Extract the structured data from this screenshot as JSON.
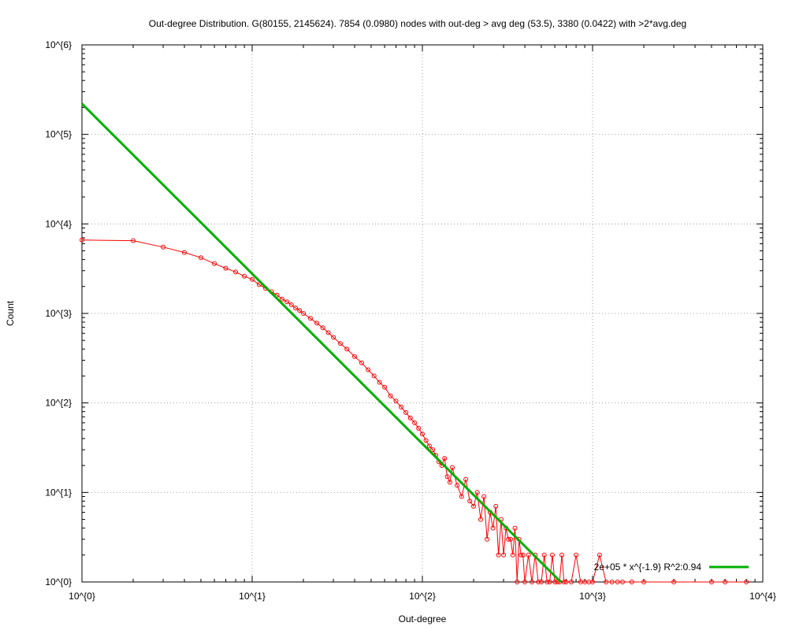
{
  "chart_data": {
    "type": "line",
    "title": "Out-degree Distribution. G(80155, 2145624). 7854 (0.0980) nodes with out-deg > avg deg (53.5), 3380 (0.0422) with >2*avg.deg",
    "xlabel": "Out-degree",
    "ylabel": "Count",
    "xscale": "log",
    "yscale": "log",
    "xlim": [
      1,
      10000
    ],
    "ylim": [
      1,
      1000000
    ],
    "grid": true,
    "legend_position": "bottom-right",
    "x_ticks": [
      {
        "value": 1,
        "label": "10^{0}"
      },
      {
        "value": 10,
        "label": "10^{1}"
      },
      {
        "value": 100,
        "label": "10^{2}"
      },
      {
        "value": 1000,
        "label": "10^{3}"
      },
      {
        "value": 10000,
        "label": "10^{4}"
      }
    ],
    "y_ticks": [
      {
        "value": 1,
        "label": "10^{0}"
      },
      {
        "value": 10,
        "label": "10^{1}"
      },
      {
        "value": 100,
        "label": "10^{2}"
      },
      {
        "value": 1000,
        "label": "10^{3}"
      },
      {
        "value": 10000,
        "label": "10^{4}"
      },
      {
        "value": 100000,
        "label": "10^{5}"
      },
      {
        "value": 1000000,
        "label": "10^{6}"
      }
    ],
    "series": [
      {
        "name": "",
        "color": "#ff0000",
        "style": "line-points",
        "x": [
          1,
          2,
          3,
          4,
          5,
          6,
          7,
          8,
          9,
          10,
          11,
          12,
          13,
          14,
          15,
          16,
          17,
          18,
          19,
          20,
          22,
          24,
          26,
          28,
          30,
          33,
          36,
          40,
          44,
          48,
          52,
          56,
          60,
          65,
          70,
          75,
          80,
          85,
          90,
          95,
          100,
          105,
          110,
          115,
          120,
          125,
          130,
          135,
          140,
          145,
          150,
          160,
          170,
          180,
          190,
          200,
          210,
          220,
          230,
          240,
          250,
          260,
          270,
          280,
          290,
          300,
          310,
          320,
          330,
          340,
          350,
          360,
          370,
          380,
          390,
          400,
          420,
          440,
          460,
          480,
          500,
          520,
          540,
          560,
          580,
          600,
          620,
          640,
          660,
          680,
          700,
          750,
          800,
          850,
          900,
          950,
          1000,
          1100,
          1200,
          1300,
          1400,
          1500,
          1700,
          2000,
          3000,
          5000,
          6000,
          8000
        ],
        "y": [
          6600,
          6500,
          5500,
          4800,
          4200,
          3600,
          3200,
          2900,
          2600,
          2400,
          2100,
          1900,
          1750,
          1600,
          1450,
          1350,
          1250,
          1150,
          1080,
          1000,
          880,
          780,
          690,
          610,
          540,
          460,
          400,
          330,
          280,
          235,
          200,
          170,
          150,
          120,
          105,
          90,
          78,
          68,
          60,
          52,
          45,
          38,
          33,
          30,
          26,
          22,
          20,
          24,
          15,
          13,
          19,
          12,
          9,
          14,
          8,
          7,
          10,
          5,
          9,
          3,
          6,
          4,
          7,
          2,
          5,
          2,
          4,
          3,
          3,
          2,
          4,
          1,
          3,
          2,
          2,
          1,
          2,
          1,
          2,
          1,
          1,
          2,
          1,
          1,
          2,
          1,
          1,
          1,
          2,
          1,
          1,
          1,
          2,
          1,
          1,
          1,
          1,
          2,
          1,
          1,
          1,
          1,
          1,
          1,
          1,
          1,
          1,
          1
        ]
      },
      {
        "name": "2e+05 * x^{-1.9}  R^2:0.94",
        "color": "#00b000",
        "style": "line",
        "function": {
          "a": 220000,
          "b": -1.9
        },
        "x": [
          1,
          650
        ],
        "y": [
          220000,
          1
        ]
      }
    ]
  }
}
